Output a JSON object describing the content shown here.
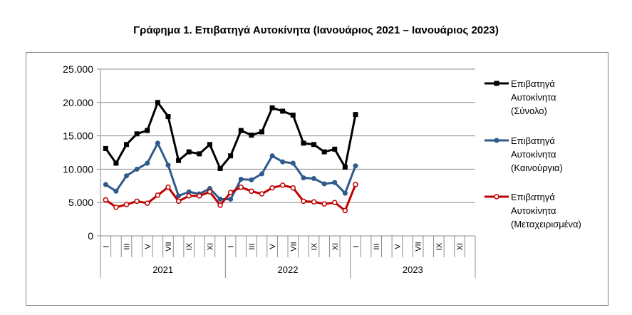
{
  "page": {
    "title": "Γράφημα 1. Επιβατηγά Αυτοκίνητα (Ιανουάριος 2021 – Ιανουάριος 2023)"
  },
  "chart_data": {
    "type": "line",
    "title": "Γράφημα 1. Επιβατηγά Αυτοκίνητα (Ιανουάριος 2021 – Ιανουάριος 2023)",
    "ylim": [
      0,
      25000
    ],
    "yticks": [
      "0",
      "5.000",
      "10.000",
      "15.000",
      "20.000",
      "25.000"
    ],
    "grid": true,
    "legend_position": "right",
    "month_labels": [
      "I",
      "",
      "III",
      "",
      "V",
      "",
      "VII",
      "",
      "IX",
      "",
      "XI",
      ""
    ],
    "years": [
      "2021",
      "2022",
      "2023"
    ],
    "months_per_year": 12,
    "series": [
      {
        "name": "Επιβατηγά Αυτοκίνητα (Σύνολο)",
        "legend_lines": [
          "Επιβατηγά",
          "Αυτοκίνητα",
          "(Σύνολο)"
        ],
        "color": "#000000",
        "marker": "square",
        "values": [
          13100,
          10900,
          13700,
          15300,
          15800,
          20000,
          17900,
          11300,
          12600,
          12300,
          13700,
          10100,
          12000,
          15800,
          15100,
          15600,
          19200,
          18700,
          18100,
          13900,
          13700,
          12600,
          13000,
          10300,
          18200
        ]
      },
      {
        "name": "Επιβατηγά Αυτοκίνητα (Καινούργια)",
        "legend_lines": [
          "Επιβατηγά",
          "Αυτοκίνητα",
          "(Καινούργια)"
        ],
        "color": "#2E5A8C",
        "marker": "circle",
        "values": [
          7700,
          6700,
          9000,
          10000,
          10900,
          13900,
          10600,
          6000,
          6600,
          6300,
          7100,
          5500,
          5500,
          8500,
          8400,
          9300,
          12000,
          11100,
          10900,
          8700,
          8600,
          7800,
          8000,
          6400,
          10500
        ]
      },
      {
        "name": "Επιβατηγά Αυτοκίνητα (Μεταχειρισμένα)",
        "legend_lines": [
          "Επιβατηγά",
          "Αυτοκίνητα",
          "(Μεταχειρισμένα)"
        ],
        "color": "#C00000",
        "marker": "circle-open",
        "values": [
          5400,
          4300,
          4700,
          5200,
          4900,
          6100,
          7300,
          5200,
          6000,
          6000,
          6600,
          4600,
          6500,
          7300,
          6700,
          6300,
          7200,
          7600,
          7200,
          5200,
          5100,
          4800,
          5000,
          3800,
          7700
        ]
      }
    ]
  }
}
